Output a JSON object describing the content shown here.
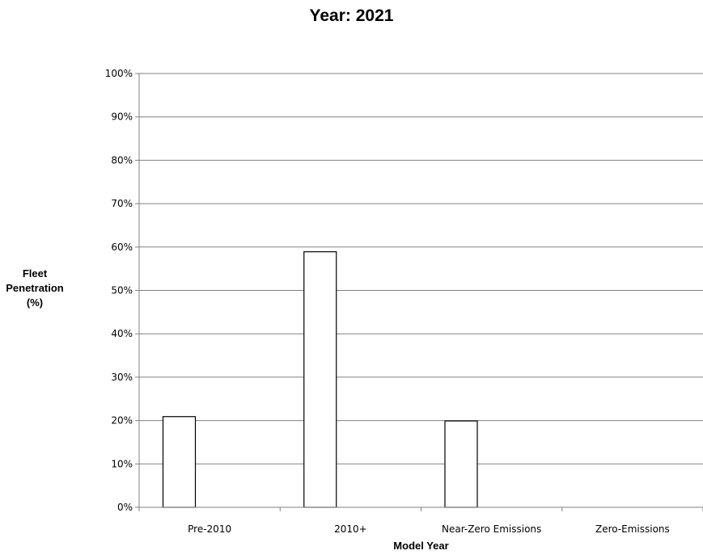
{
  "chart_data": {
    "type": "bar",
    "title": "Year: 2021",
    "xlabel": "Model Year",
    "ylabel": [
      "Fleet",
      "Penetration",
      "(%)"
    ],
    "categories": [
      "Pre-2010",
      "2010+",
      "Near-Zero Emissions",
      "Zero-Emissions"
    ],
    "values": [
      21,
      59,
      20,
      0
    ],
    "ylim": [
      0,
      100
    ],
    "yticks": [
      "0%",
      "10%",
      "20%",
      "30%",
      "40%",
      "50%",
      "60%",
      "70%",
      "80%",
      "90%",
      "100%"
    ],
    "grid": true,
    "bar_fill": "#ffffff",
    "bar_stroke": "#000000",
    "grid_color": "#808080"
  }
}
